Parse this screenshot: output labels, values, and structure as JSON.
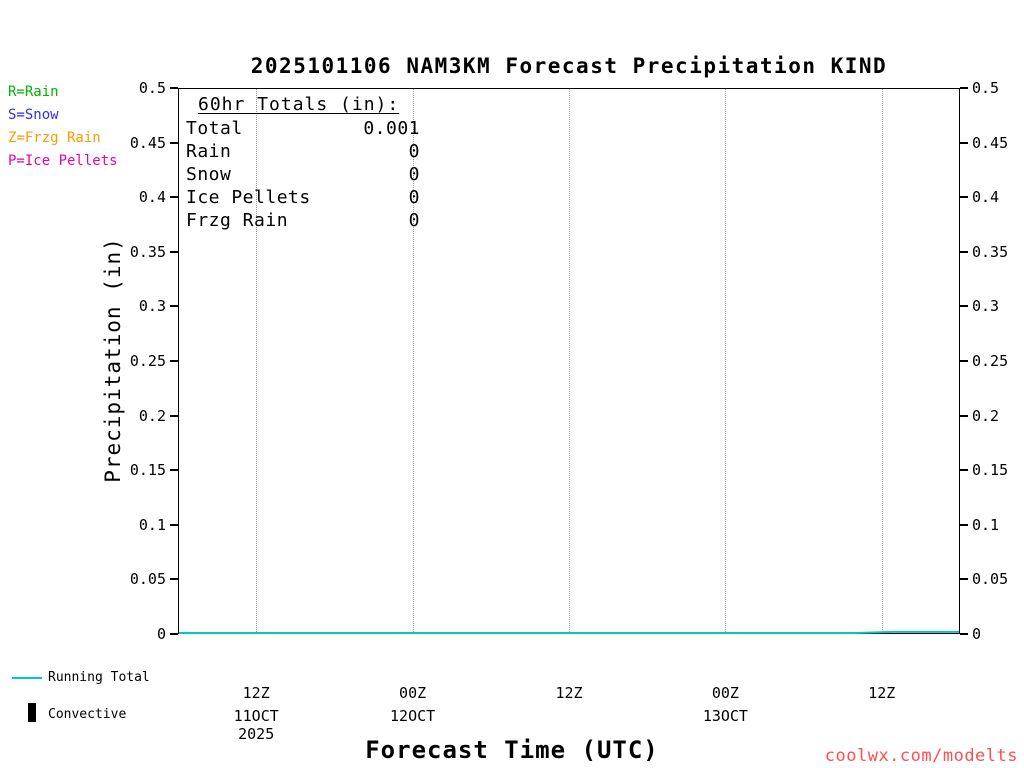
{
  "title": "2025101106 NAM3KM Forecast Precipitation KIND",
  "watermark": "coolwx.com/modelts",
  "type_legend": [
    {
      "label": "R=Rain",
      "color": "#00b400"
    },
    {
      "label": "S=Snow",
      "color": "#2b2bff"
    },
    {
      "label": "Z=Frzg Rain",
      "color": "#ff9a00"
    },
    {
      "label": "P=Ice Pellets",
      "color": "#e800b0"
    }
  ],
  "totals_box": {
    "heading": "60hr Totals (in):",
    "rows": [
      {
        "label": "Total",
        "value": "0.001"
      },
      {
        "label": "Rain",
        "value": "0"
      },
      {
        "label": "Snow",
        "value": "0"
      },
      {
        "label": "Ice Pellets",
        "value": "0"
      },
      {
        "label": "Frzg Rain",
        "value": "0"
      }
    ]
  },
  "footer_legend": {
    "items": [
      {
        "label": "Running Total",
        "swatch": "line",
        "color": "#00c8c8"
      },
      {
        "label": "Convective",
        "swatch": "bar",
        "color": "#000000"
      }
    ]
  },
  "chart_data": {
    "type": "line",
    "title": "2025101106 NAM3KM Forecast Precipitation KIND",
    "xlabel": "Forecast Time (UTC)",
    "ylabel": "Precipitation (in)",
    "ylim": [
      0,
      0.5
    ],
    "xlim_hours": [
      0,
      60
    ],
    "grid": "vertical-dotted",
    "legend_position": "top-left",
    "yticks": [
      {
        "value": 0,
        "label": "0"
      },
      {
        "value": 0.05,
        "label": "0.05"
      },
      {
        "value": 0.1,
        "label": "0.1"
      },
      {
        "value": 0.15,
        "label": "0.15"
      },
      {
        "value": 0.2,
        "label": "0.2"
      },
      {
        "value": 0.25,
        "label": "0.25"
      },
      {
        "value": 0.3,
        "label": "0.3"
      },
      {
        "value": 0.35,
        "label": "0.35"
      },
      {
        "value": 0.4,
        "label": "0.4"
      },
      {
        "value": 0.45,
        "label": "0.45"
      },
      {
        "value": 0.5,
        "label": "0.5"
      }
    ],
    "xticks": [
      {
        "hour": 6,
        "label": "12Z"
      },
      {
        "hour": 18,
        "label": "00Z"
      },
      {
        "hour": 30,
        "label": "12Z"
      },
      {
        "hour": 42,
        "label": "00Z"
      },
      {
        "hour": 54,
        "label": "12Z"
      }
    ],
    "date_labels": [
      {
        "hour": 6,
        "label": "11OCT"
      },
      {
        "hour": 18,
        "label": "12OCT"
      },
      {
        "hour": 42,
        "label": "13OCT"
      }
    ],
    "year_label": {
      "hour": 6,
      "label": "2025"
    },
    "series": [
      {
        "name": "Running Total",
        "color": "#00c8c8",
        "points": [
          {
            "t": 0,
            "v": 0
          },
          {
            "t": 12,
            "v": 0
          },
          {
            "t": 24,
            "v": 0
          },
          {
            "t": 36,
            "v": 0
          },
          {
            "t": 48,
            "v": 0
          },
          {
            "t": 52,
            "v": 0
          },
          {
            "t": 55,
            "v": 0.001
          },
          {
            "t": 60,
            "v": 0.001
          }
        ]
      },
      {
        "name": "Convective",
        "color": "#000000",
        "points": []
      }
    ]
  }
}
